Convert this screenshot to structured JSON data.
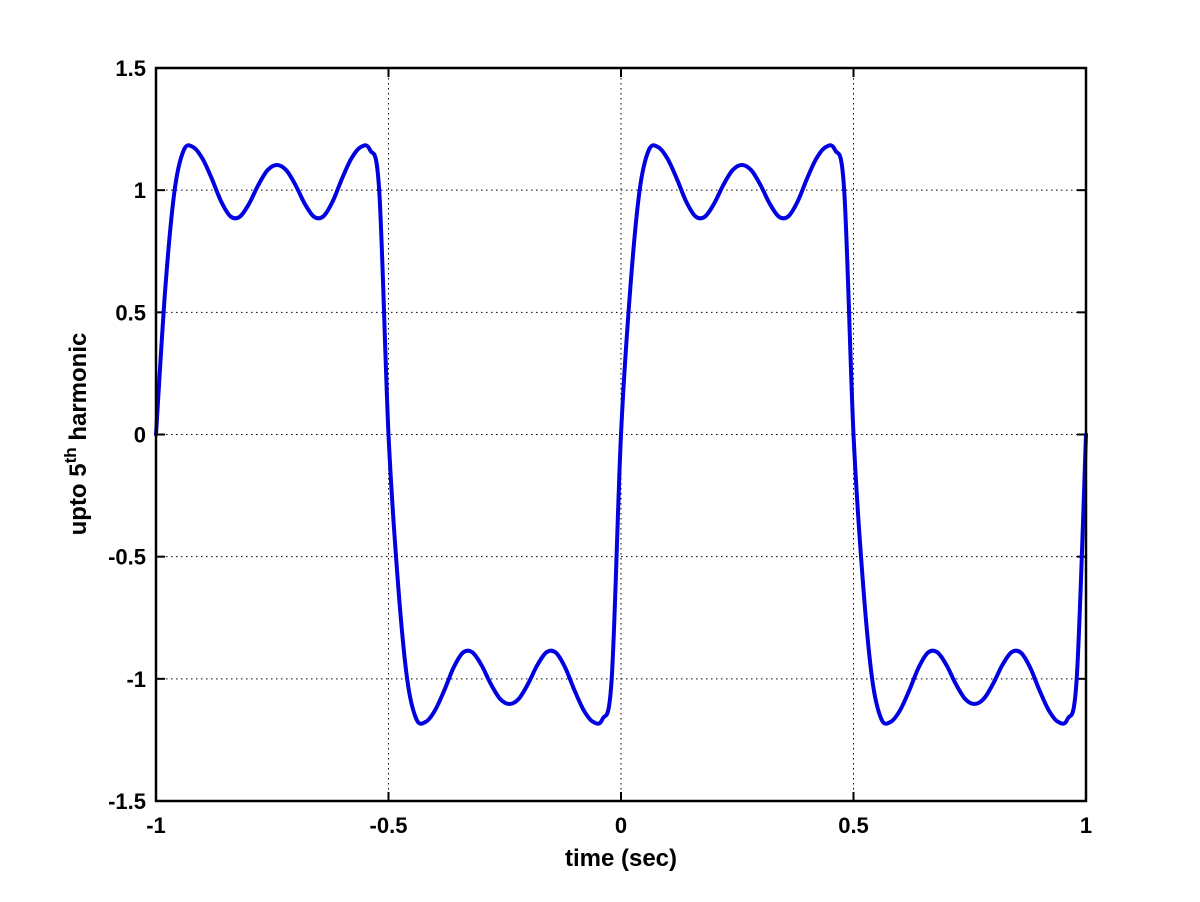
{
  "chart_data": {
    "type": "line",
    "xlabel": "time (sec)",
    "ylabel": {
      "prefix": "upto 5",
      "superscript": "th",
      "suffix": " harmonic"
    },
    "xlim": [
      -1,
      1
    ],
    "ylim": [
      -1.5,
      1.5
    ],
    "xticks": [
      -1,
      -0.5,
      0,
      0.5,
      1
    ],
    "xtick_labels": [
      "-1",
      "-0.5",
      "0",
      "0.5",
      "1"
    ],
    "yticks": [
      -1.5,
      -1,
      -0.5,
      0,
      0.5,
      1,
      1.5
    ],
    "ytick_labels": [
      "-1.5",
      "-1",
      "-0.5",
      "0",
      "0.5",
      "1",
      "1.5"
    ],
    "grid": true,
    "series": [
      {
        "color": "#0000e0",
        "x": [
          -1.0,
          -0.98,
          -0.96,
          -0.94,
          -0.92,
          -0.9,
          -0.88,
          -0.86,
          -0.84,
          -0.82,
          -0.8,
          -0.78,
          -0.76,
          -0.74,
          -0.72,
          -0.7,
          -0.68,
          -0.66,
          -0.64,
          -0.62,
          -0.6,
          -0.58,
          -0.56,
          -0.54,
          -0.52,
          -0.5,
          -0.48,
          -0.46,
          -0.44,
          -0.42,
          -0.4,
          -0.38,
          -0.36,
          -0.34,
          -0.32,
          -0.3,
          -0.28,
          -0.26,
          -0.24,
          -0.22,
          -0.2,
          -0.18,
          -0.16,
          -0.14,
          -0.12,
          -0.1,
          -0.08,
          -0.06,
          -0.04,
          -0.02,
          0.0,
          0.02,
          0.04,
          0.06,
          0.08,
          0.1,
          0.12,
          0.14,
          0.16,
          0.18,
          0.2,
          0.22,
          0.24,
          0.26,
          0.28,
          0.3,
          0.32,
          0.34,
          0.36,
          0.38,
          0.4,
          0.42,
          0.44,
          0.46,
          0.48,
          0.5,
          0.52,
          0.54,
          0.56,
          0.58,
          0.6,
          0.62,
          0.64,
          0.66,
          0.68,
          0.7,
          0.72,
          0.74,
          0.76,
          0.78,
          0.8,
          0.82,
          0.84,
          0.86,
          0.88,
          0.9,
          0.92,
          0.94,
          0.96,
          0.98,
          1.0
        ],
        "y": [
          0.0,
          0.598,
          0.999,
          1.165,
          1.176,
          1.129,
          1.047,
          0.954,
          0.893,
          0.891,
          0.944,
          1.021,
          1.082,
          1.103,
          1.082,
          1.021,
          0.944,
          0.891,
          0.893,
          0.954,
          1.047,
          1.129,
          1.176,
          1.165,
          0.999,
          0.0,
          -0.598,
          -0.999,
          -1.165,
          -1.176,
          -1.129,
          -1.047,
          -0.954,
          -0.893,
          -0.891,
          -0.944,
          -1.021,
          -1.082,
          -1.103,
          -1.082,
          -1.021,
          -0.944,
          -0.891,
          -0.893,
          -0.954,
          -1.047,
          -1.129,
          -1.176,
          -1.165,
          -0.999,
          0.0,
          0.598,
          0.999,
          1.165,
          1.176,
          1.129,
          1.047,
          0.954,
          0.893,
          0.891,
          0.944,
          1.021,
          1.082,
          1.103,
          1.082,
          1.021,
          0.944,
          0.891,
          0.893,
          0.954,
          1.047,
          1.129,
          1.176,
          1.165,
          0.999,
          0.0,
          -0.598,
          -0.999,
          -1.165,
          -1.176,
          -1.129,
          -1.047,
          -0.954,
          -0.893,
          -0.891,
          -0.944,
          -1.021,
          -1.082,
          -1.103,
          -1.082,
          -1.021,
          -0.944,
          -0.891,
          -0.893,
          -0.954,
          -1.047,
          -1.129,
          -1.176,
          -1.165,
          -0.999,
          0.0
        ]
      }
    ]
  }
}
